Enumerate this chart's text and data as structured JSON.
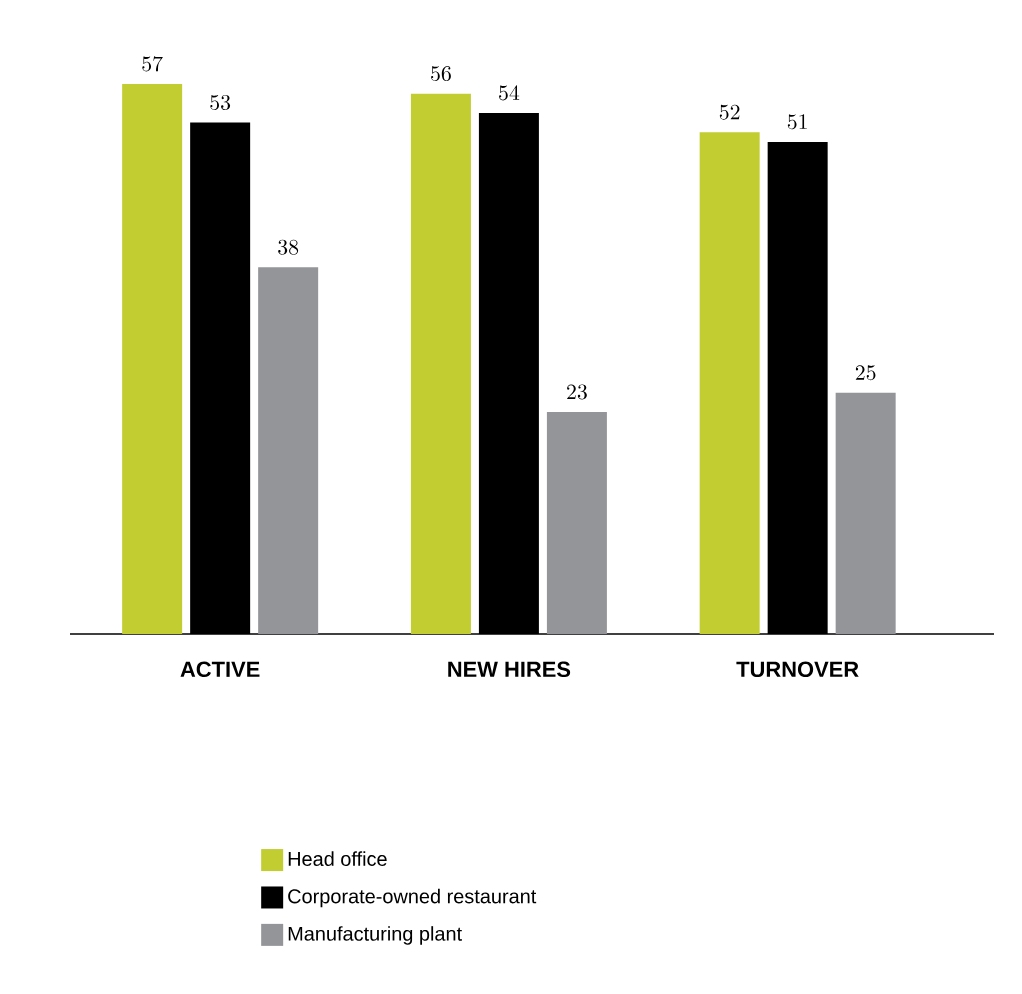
{
  "chart_data": {
    "type": "bar",
    "categories": [
      "ACTIVE",
      "NEW HIRES",
      "TURNOVER"
    ],
    "series": [
      {
        "name": "Head office",
        "color": "#c1cd30",
        "values": [
          57,
          56,
          52
        ]
      },
      {
        "name": "Corporate-owned restaurant",
        "color": "#000000",
        "values": [
          53,
          54,
          51
        ]
      },
      {
        "name": "Manufacturing plant",
        "color": "#939598",
        "values": [
          38,
          23,
          25
        ]
      }
    ],
    "ylim": [
      0,
      57
    ],
    "data_labels": true,
    "legend": "bottom"
  }
}
